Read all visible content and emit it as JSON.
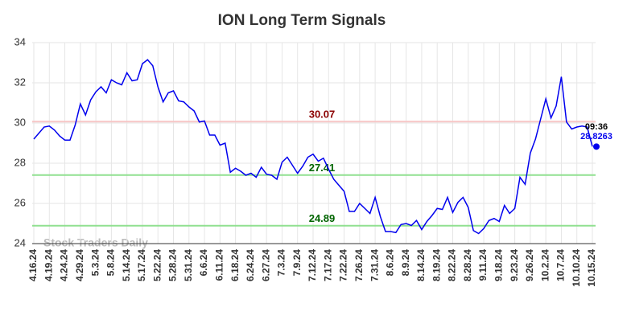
{
  "chart_data": {
    "type": "line",
    "title": "ION Long Term Signals",
    "categories": [
      "4.16.24",
      null,
      null,
      "4.19.24",
      null,
      null,
      "4.24.24",
      null,
      null,
      "4.29.24",
      null,
      null,
      "5.3.24",
      null,
      null,
      "5.8.24",
      null,
      null,
      "5.14.24",
      null,
      null,
      "5.17.24",
      null,
      null,
      "5.22.24",
      null,
      null,
      "5.28.24",
      null,
      null,
      "5.31.24",
      null,
      null,
      "6.6.24",
      null,
      null,
      "6.11.24",
      null,
      null,
      "6.18.24",
      null,
      null,
      "6.24.24",
      null,
      null,
      "6.27.24",
      null,
      null,
      "7.3.24",
      null,
      null,
      "7.9.24",
      null,
      null,
      "7.12.24",
      null,
      null,
      "7.17.24",
      null,
      null,
      "7.22.24",
      null,
      null,
      "7.26.24",
      null,
      null,
      "7.31.24",
      null,
      null,
      "8.6.24",
      null,
      null,
      "8.9.24",
      null,
      null,
      "8.14.24",
      null,
      null,
      "8.19.24",
      null,
      null,
      "8.22.24",
      null,
      null,
      "8.28.24",
      null,
      null,
      "9.11.24",
      null,
      null,
      "9.18.24",
      null,
      null,
      "9.23.24",
      null,
      null,
      "9.26.24",
      null,
      null,
      "10.2.24",
      null,
      null,
      "10.7.24",
      null,
      null,
      "10.10.24",
      null,
      null,
      "10.15.24"
    ],
    "values": [
      29.2,
      29.5,
      29.8,
      29.85,
      29.65,
      29.35,
      29.15,
      29.15,
      29.9,
      30.95,
      30.4,
      31.15,
      31.55,
      31.8,
      31.5,
      32.15,
      32.0,
      31.9,
      32.5,
      32.1,
      32.15,
      32.95,
      33.15,
      32.85,
      31.8,
      31.05,
      31.5,
      31.6,
      31.1,
      31.05,
      30.8,
      30.6,
      30.05,
      30.1,
      29.4,
      29.4,
      28.9,
      29.0,
      27.55,
      27.75,
      27.6,
      27.4,
      27.5,
      27.3,
      27.8,
      27.45,
      27.4,
      27.2,
      28.05,
      28.3,
      27.9,
      27.5,
      27.85,
      28.3,
      28.45,
      28.1,
      28.25,
      27.7,
      27.2,
      26.9,
      26.6,
      25.6,
      25.6,
      26.0,
      25.75,
      25.5,
      26.3,
      25.35,
      24.6,
      24.6,
      24.55,
      24.95,
      25.0,
      24.9,
      25.15,
      24.7,
      25.1,
      25.4,
      25.75,
      25.7,
      26.3,
      25.55,
      26.05,
      26.3,
      25.8,
      24.65,
      24.5,
      24.75,
      25.15,
      25.25,
      25.1,
      25.9,
      25.5,
      25.75,
      27.3,
      26.95,
      28.5,
      29.2,
      30.2,
      31.2,
      30.25,
      30.85,
      32.3,
      30.05,
      29.7,
      29.8,
      29.85,
      29.8,
      28.8263
    ],
    "color": "#0000ee",
    "ylim": [
      24,
      34
    ],
    "yticks": [
      24,
      26,
      28,
      30,
      32,
      34
    ],
    "grid": true,
    "hlines": [
      {
        "value": 30.07,
        "color": "#8b0000",
        "line_color": "#f7c6c6"
      },
      {
        "value": 27.41,
        "color": "#006400",
        "line_color": "#90e090"
      },
      {
        "value": 24.89,
        "color": "#006400",
        "line_color": "#90e090"
      }
    ],
    "last_time": "09:36",
    "watermark": "Stock Traders Daily"
  }
}
